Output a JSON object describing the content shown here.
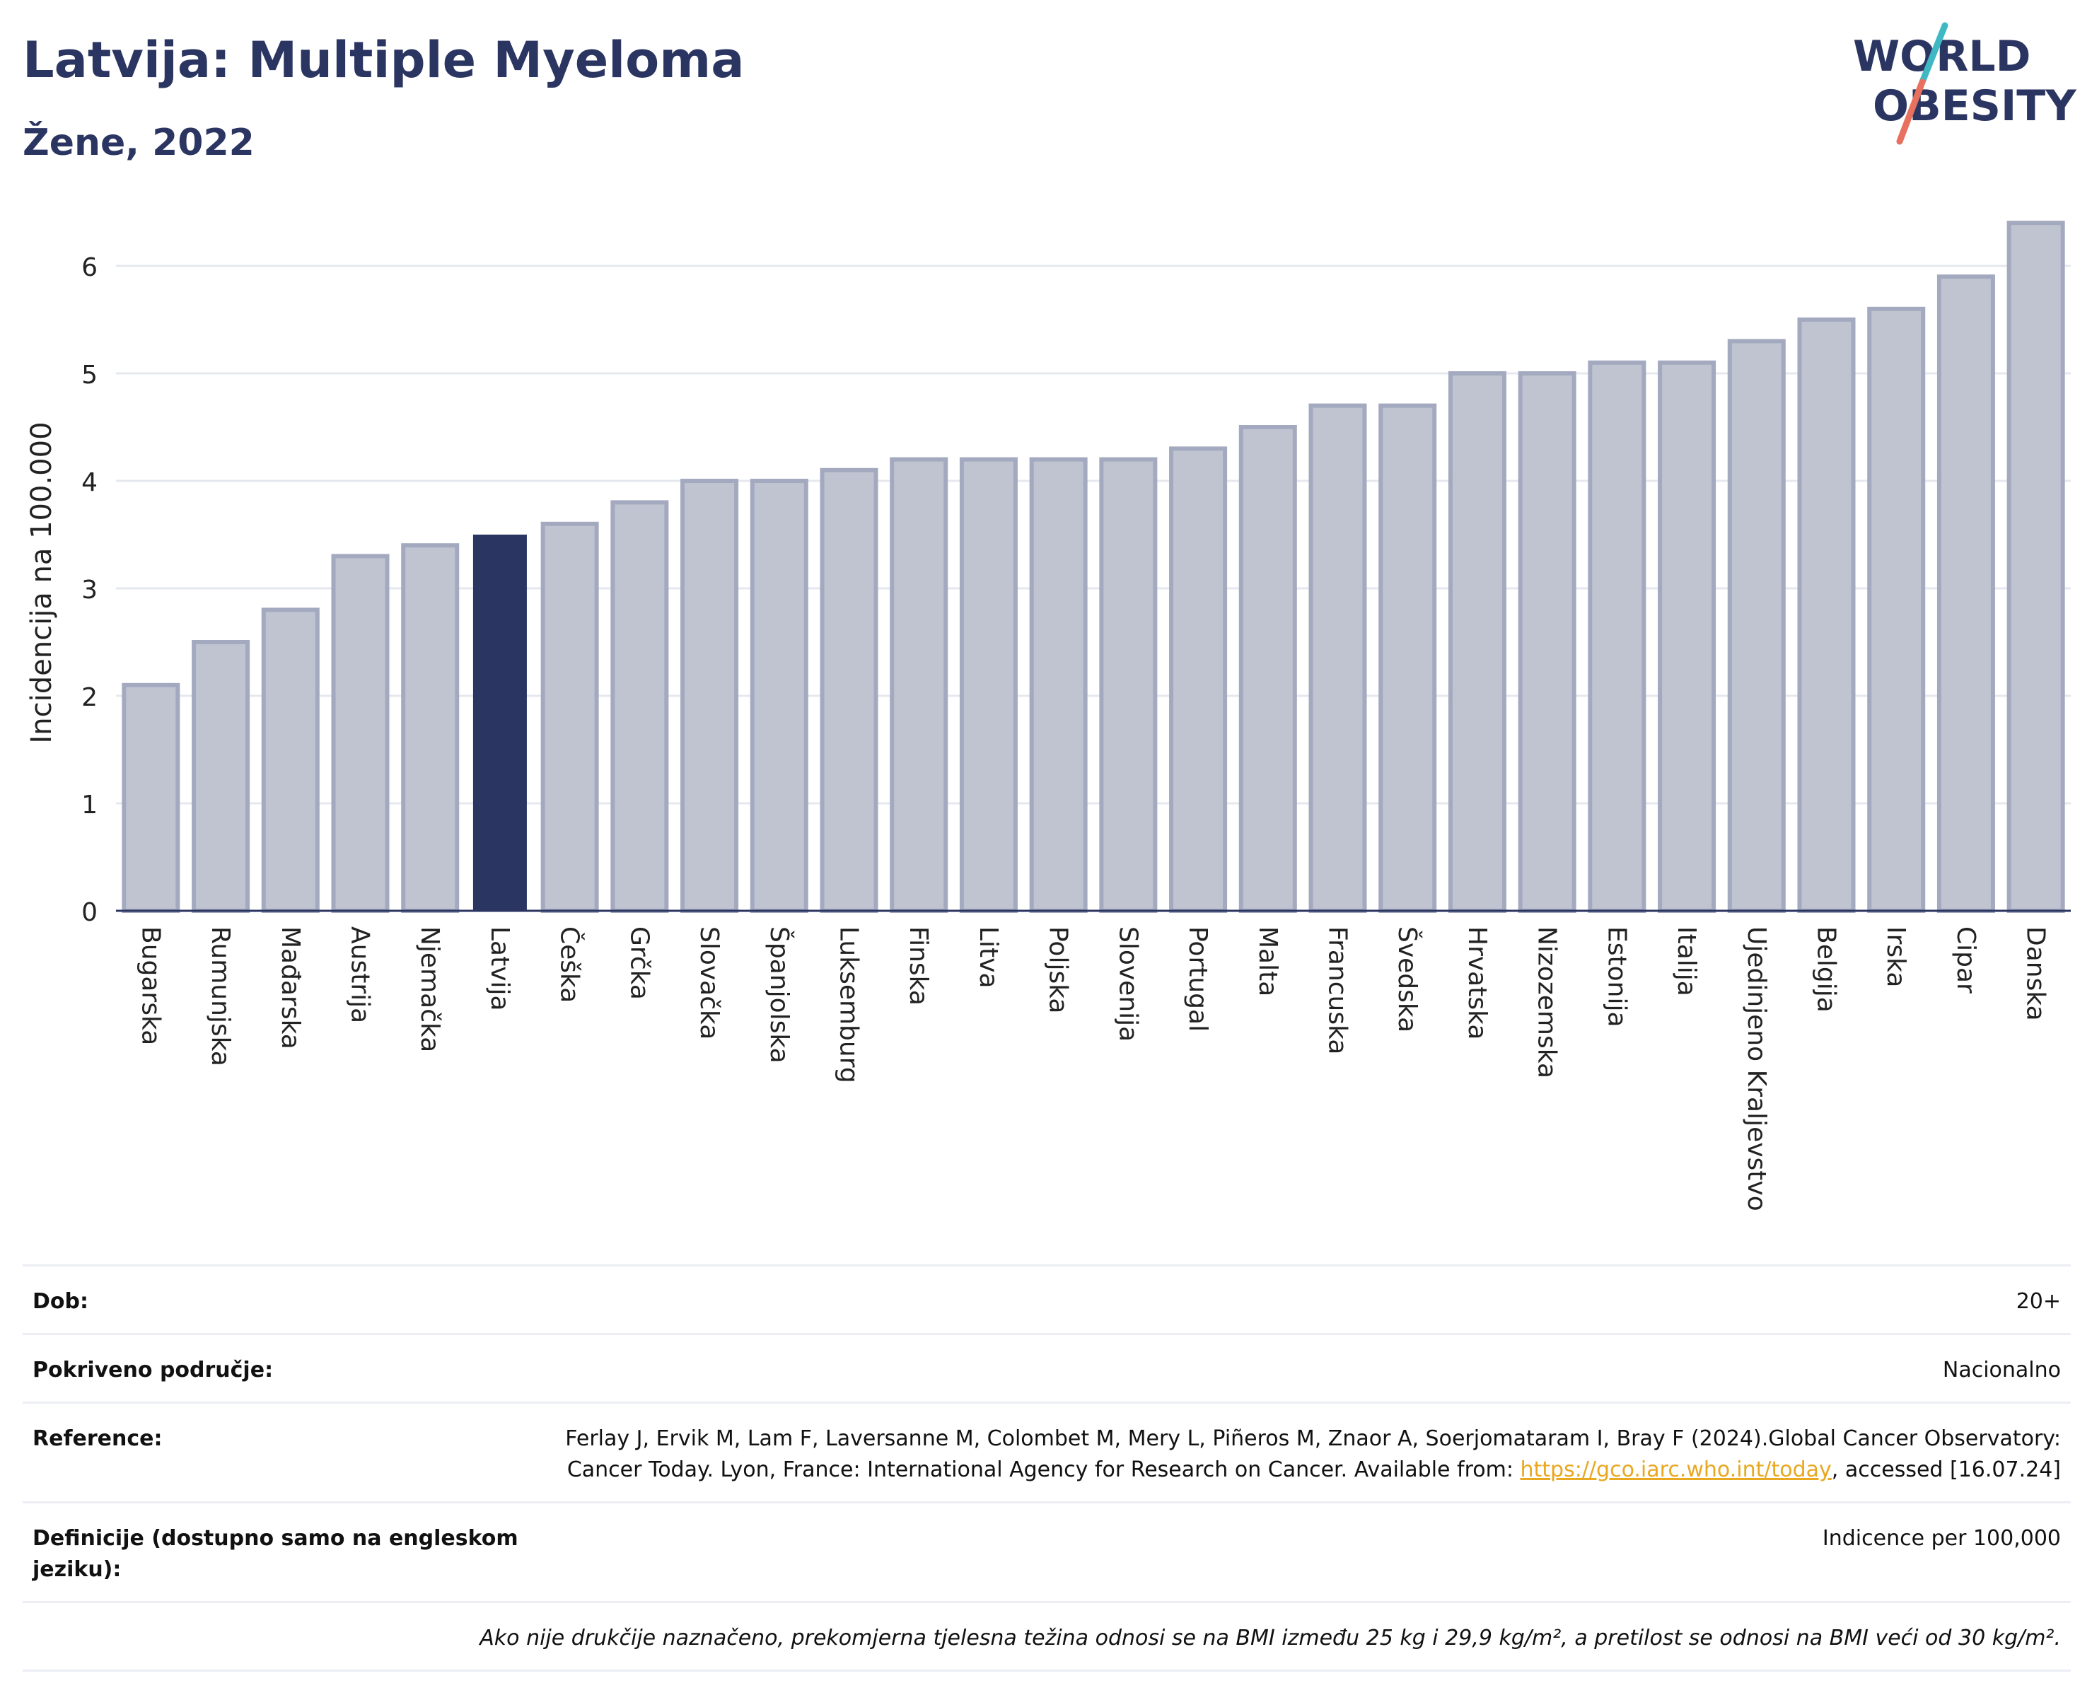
{
  "header": {
    "title": "Latvija: Multiple Myeloma",
    "subtitle": "Žene, 2022",
    "logo_line1": "WORLD",
    "logo_line2": "OBESITY"
  },
  "colors": {
    "bar": "#c0c4d1",
    "bar_stroke": "#a3a9bf",
    "highlight": "#2b3561",
    "brand_teal": "#3fb8c4",
    "brand_coral": "#e8705e"
  },
  "chart_data": {
    "type": "bar",
    "ylabel": "Incidencija na 100.000",
    "ylim": [
      0,
      6.5
    ],
    "yticks": [
      0,
      1,
      2,
      3,
      4,
      5,
      6
    ],
    "grid": true,
    "highlight": "Latvija",
    "categories": [
      "Bugarska",
      "Rumunjska",
      "Mađarska",
      "Austrija",
      "Njemačka",
      "Latvija",
      "Češka",
      "Grčka",
      "Slovačka",
      "Španjolska",
      "Luksemburg",
      "Finska",
      "Litva",
      "Poljska",
      "Slovenija",
      "Portugal",
      "Malta",
      "Francuska",
      "Švedska",
      "Hrvatska",
      "Nizozemska",
      "Estonija",
      "Italija",
      "Ujedinjeno Kraljevstvo",
      "Belgija",
      "Irska",
      "Cipar",
      "Danska"
    ],
    "values": [
      2.1,
      2.5,
      2.8,
      3.3,
      3.4,
      3.5,
      3.6,
      3.8,
      4.0,
      4.0,
      4.1,
      4.2,
      4.2,
      4.2,
      4.2,
      4.3,
      4.5,
      4.7,
      4.7,
      5.0,
      5.0,
      5.1,
      5.1,
      5.3,
      5.5,
      5.6,
      5.9,
      6.4
    ]
  },
  "info": {
    "age_label": "Dob:",
    "age_value": "20+",
    "coverage_label": "Pokriveno područje:",
    "coverage_value": "Nacionalno",
    "reference_label": "Reference:",
    "reference_text": "Ferlay J, Ervik M, Lam F, Laversanne M, Colombet M, Mery L, Piñeros M, Znaor A, Soerjomataram I, Bray F (2024).Global Cancer Observatory: Cancer Today. Lyon, France: International Agency for Research on Cancer. Available from:",
    "reference_link": "https://gco.iarc.who.int/today",
    "reference_tail": ", accessed [16.07.24]",
    "definition_label": "Definicije (dostupno samo na engleskom jeziku):",
    "definition_value": "Indicence per 100,000",
    "note": "Ako nije drukčije naznačeno, prekomjerna tjelesna težina odnosi se na BMI između 25 kg i 29,9 kg/m², a pretilost se odnosi na BMI veći od 30 kg/m²."
  }
}
